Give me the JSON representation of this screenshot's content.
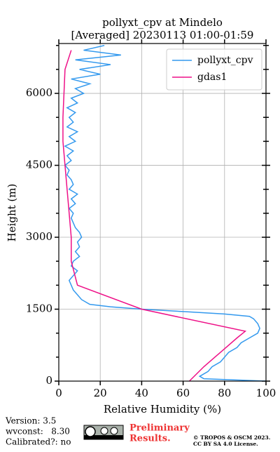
{
  "chart_data": {
    "type": "line",
    "title": "pollyxt_cpv at Mindelo",
    "subtitle": "[Averaged] 20230113 01:00-01:59",
    "xlabel": "Relative Humidity (%)",
    "ylabel": "Height (m)",
    "xlim": [
      0,
      100
    ],
    "xticks": [
      0,
      20,
      40,
      60,
      80,
      100
    ],
    "ylim": [
      0,
      7040
    ],
    "yticks": [
      0,
      1500,
      3000,
      4500,
      6000
    ],
    "yminorticks": [
      500,
      1000,
      2000,
      2500,
      3500,
      4000,
      5000,
      5500,
      6500,
      7000
    ],
    "grid": true,
    "legend": "upper right",
    "series": [
      {
        "name": "pollyxt_cpv",
        "color": "#3399ee",
        "height": [
          0,
          50,
          100,
          200,
          300,
          400,
          500,
          600,
          700,
          800,
          900,
          1000,
          1100,
          1200,
          1300,
          1350,
          1400,
          1450,
          1500,
          1550,
          1600,
          1700,
          1800,
          1900,
          2000,
          2100,
          2200,
          2300,
          2400,
          2500,
          2600,
          2700,
          2800,
          2900,
          3000,
          3100,
          3200,
          3300,
          3400,
          3500,
          3600,
          3700,
          3800,
          3900,
          4000,
          4100,
          4200,
          4300,
          4400,
          4500,
          4600,
          4700,
          4800,
          4900,
          5000,
          5100,
          5200,
          5300,
          5400,
          5500,
          5600,
          5700,
          5800,
          5900,
          6000,
          6100,
          6200,
          6300,
          6400,
          6500,
          6600,
          6700,
          6800,
          6900,
          7000
        ],
        "values": [
          100,
          70,
          68,
          72,
          74,
          78,
          80,
          82,
          86,
          88,
          92,
          96,
          97,
          96,
          94,
          92,
          80,
          60,
          40,
          25,
          15,
          11,
          9,
          7,
          6,
          5,
          7,
          9,
          6,
          7,
          10,
          8,
          10,
          9,
          11,
          10,
          8,
          7,
          6,
          7,
          5,
          8,
          6,
          9,
          5,
          7,
          6,
          4,
          5,
          3,
          6,
          4,
          7,
          3,
          8,
          5,
          9,
          4,
          7,
          5,
          8,
          4,
          9,
          6,
          12,
          8,
          15,
          6,
          20,
          10,
          25,
          8,
          30,
          12,
          22
        ]
      },
      {
        "name": "gdas1",
        "color": "#ee1188",
        "height": [
          0,
          300,
          600,
          900,
          1040,
          1500,
          2000,
          2500,
          3000,
          3500,
          4000,
          4500,
          5000,
          5500,
          6000,
          6500,
          6900
        ],
        "values": [
          63,
          70,
          78,
          86,
          90,
          40,
          9,
          6,
          6,
          5,
          4,
          3,
          2,
          2,
          2.5,
          3,
          6
        ]
      }
    ]
  },
  "footer": {
    "version": "Version: 3.5",
    "wvconst": "wvconst:   8.30",
    "calibrated": "Calibrated?: no",
    "preliminary_1": "Preliminary",
    "preliminary_2": "Results.",
    "copyright_1": "© TROPOS & OSCM 2023.",
    "copyright_2": "CC BY SA 4.0 License."
  }
}
